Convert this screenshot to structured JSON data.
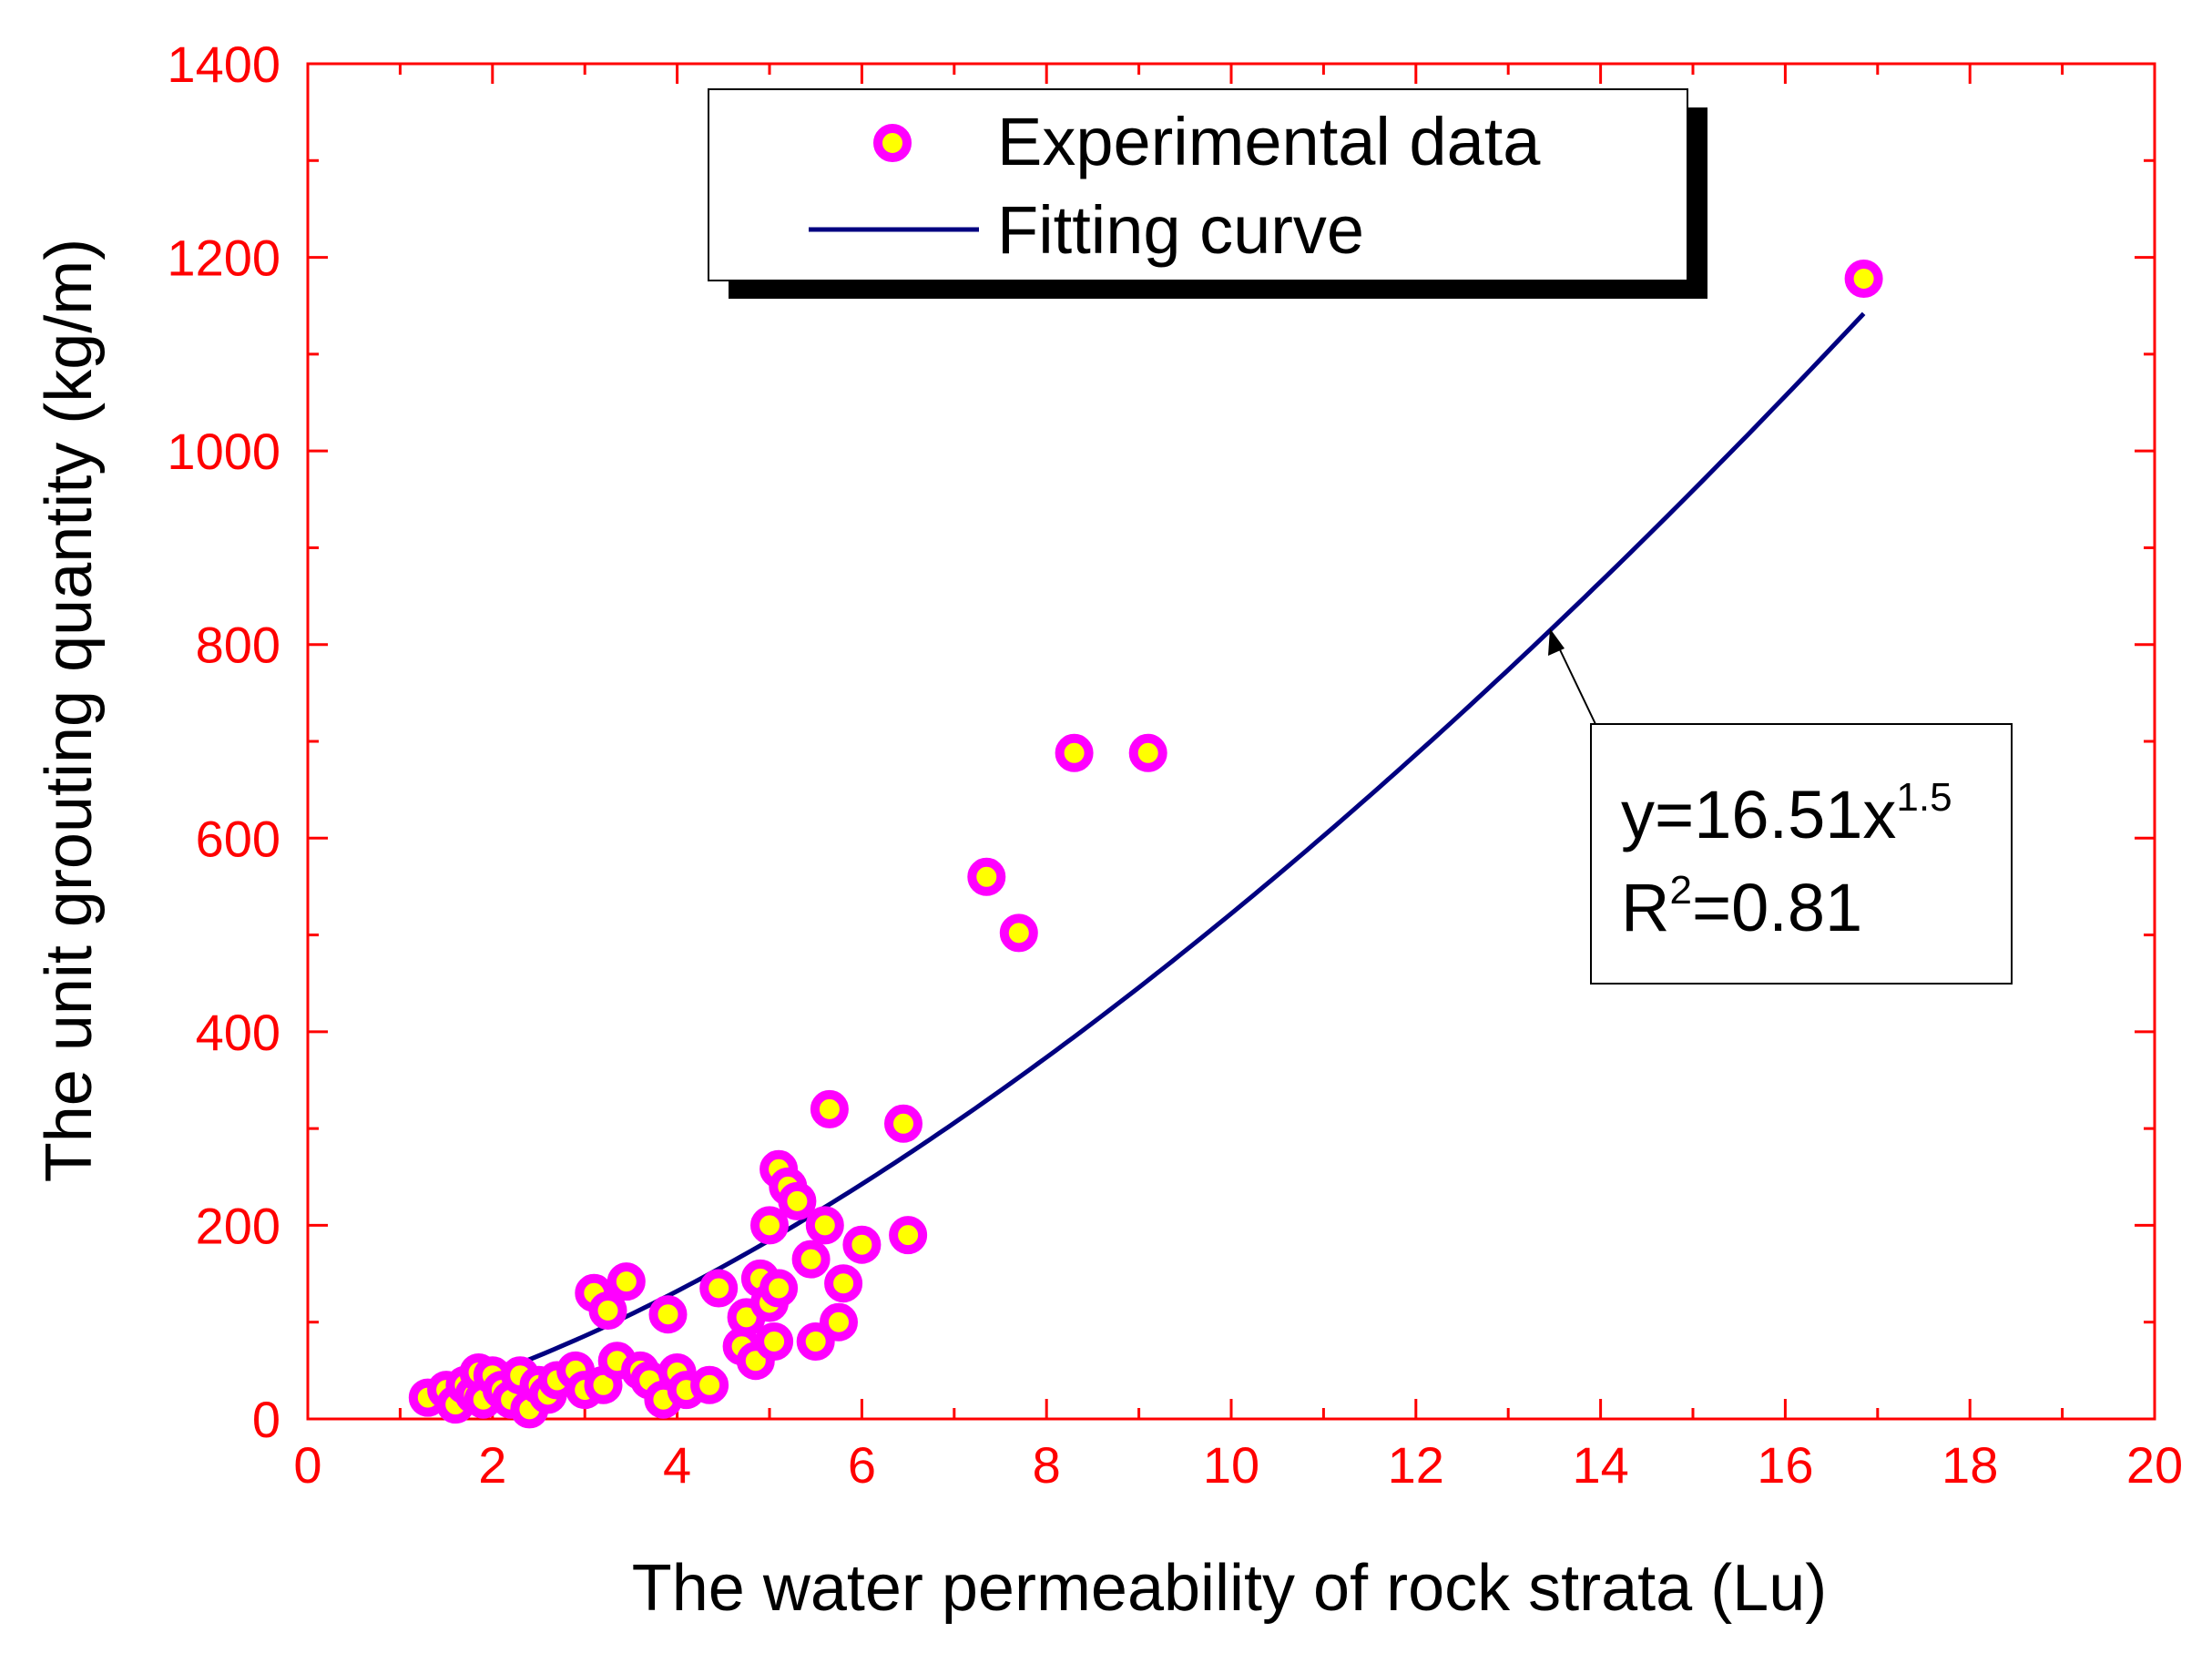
{
  "chart_data": {
    "type": "scatter",
    "title": "",
    "xlabel": "The water permeability of rock strata (Lu)",
    "ylabel": "The unit grouting quantity (kg/m)",
    "xlim": [
      0,
      20
    ],
    "ylim": [
      0,
      1400
    ],
    "x_ticks": [
      "0",
      "2",
      "4",
      "6",
      "8",
      "10",
      "12",
      "14",
      "16",
      "18",
      "20"
    ],
    "y_ticks": [
      "0",
      "200",
      "400",
      "600",
      "800",
      "1000",
      "1200",
      "1400"
    ],
    "grid": false,
    "legend": {
      "placement": "top-center",
      "entries": [
        "Experimental data",
        "Fitting curve"
      ]
    },
    "colors": {
      "axis": "#ff0000",
      "marker_edge": "#ff00ff",
      "marker_fill": "#ffff00",
      "curve": "#000080",
      "text": "#000000"
    },
    "series": [
      {
        "name": "Experimental data",
        "kind": "scatter",
        "points": [
          [
            1.3,
            22
          ],
          [
            1.5,
            30
          ],
          [
            1.6,
            15
          ],
          [
            1.7,
            35
          ],
          [
            1.8,
            25
          ],
          [
            1.85,
            48
          ],
          [
            1.9,
            20
          ],
          [
            2.0,
            45
          ],
          [
            2.1,
            30
          ],
          [
            2.2,
            20
          ],
          [
            2.3,
            45
          ],
          [
            2.4,
            10
          ],
          [
            2.5,
            35
          ],
          [
            2.6,
            25
          ],
          [
            2.7,
            40
          ],
          [
            2.9,
            50
          ],
          [
            3.0,
            30
          ],
          [
            3.1,
            130
          ],
          [
            3.2,
            35
          ],
          [
            3.25,
            112
          ],
          [
            3.35,
            60
          ],
          [
            3.45,
            142
          ],
          [
            3.6,
            50
          ],
          [
            3.7,
            40
          ],
          [
            3.85,
            20
          ],
          [
            3.9,
            108
          ],
          [
            4.0,
            48
          ],
          [
            4.1,
            30
          ],
          [
            4.35,
            35
          ],
          [
            4.45,
            135
          ],
          [
            4.7,
            75
          ],
          [
            4.75,
            105
          ],
          [
            4.85,
            60
          ],
          [
            4.9,
            145
          ],
          [
            5.0,
            200
          ],
          [
            5.0,
            120
          ],
          [
            5.05,
            80
          ],
          [
            5.1,
            258
          ],
          [
            5.1,
            135
          ],
          [
            5.2,
            240
          ],
          [
            5.3,
            225
          ],
          [
            5.45,
            165
          ],
          [
            5.5,
            80
          ],
          [
            5.6,
            200
          ],
          [
            5.65,
            320
          ],
          [
            5.75,
            100
          ],
          [
            5.8,
            140
          ],
          [
            6.0,
            180
          ],
          [
            6.45,
            305
          ],
          [
            6.5,
            190
          ],
          [
            7.35,
            560
          ],
          [
            7.7,
            502
          ],
          [
            8.3,
            688
          ],
          [
            9.1,
            688
          ],
          [
            16.85,
            1178
          ]
        ]
      },
      {
        "name": "Fitting curve",
        "kind": "line",
        "equation": "y=16.51x^1.5",
        "coefficient": 16.51,
        "exponent": 1.5,
        "x_range": [
          1.3,
          16.85
        ]
      }
    ],
    "annotation": {
      "line1_prefix": "y=16.51x",
      "line1_sup": "1.5",
      "line2_prefix": "R",
      "line2_sup": "2",
      "line2_suffix": "=0.81",
      "arrow_target_x": 13.5
    }
  }
}
